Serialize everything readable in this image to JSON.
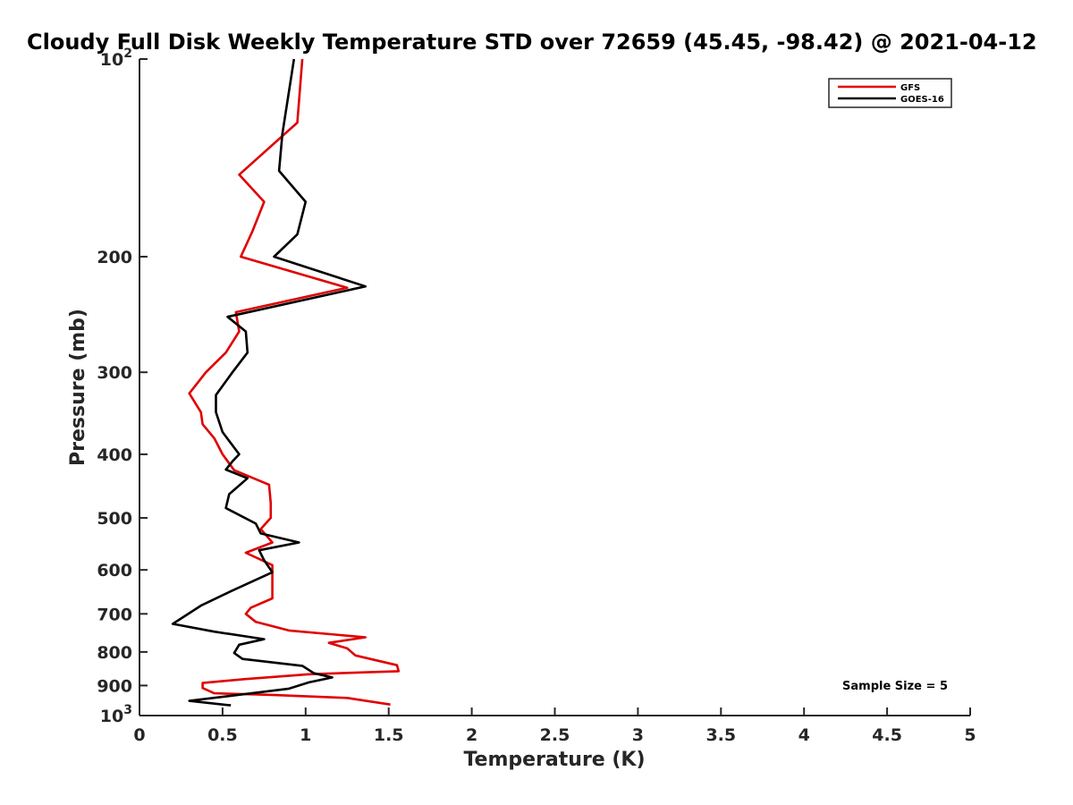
{
  "chart_data": {
    "type": "line",
    "title": "Cloudy Full Disk Weekly Temperature STD over 72659 (45.45, -98.42) @ 2021-04-12",
    "xlabel": "Temperature (K)",
    "ylabel": "Pressure (mb)",
    "xlim": [
      0,
      5
    ],
    "ylim": [
      100,
      1000
    ],
    "y_scale": "log",
    "y_reversed": true,
    "x_ticks": [
      "0",
      "0.5",
      "1",
      "1.5",
      "2",
      "2.5",
      "3",
      "3.5",
      "4",
      "4.5",
      "5"
    ],
    "y_ticks": [
      {
        "value": 100,
        "base": "10",
        "exp": "2"
      },
      {
        "value": 200,
        "label": "200"
      },
      {
        "value": 300,
        "label": "300"
      },
      {
        "value": 400,
        "label": "400"
      },
      {
        "value": 500,
        "label": "500"
      },
      {
        "value": 600,
        "label": "600"
      },
      {
        "value": 700,
        "label": "700"
      },
      {
        "value": 800,
        "label": "800"
      },
      {
        "value": 900,
        "label": "900"
      },
      {
        "value": 1000,
        "base": "10",
        "exp": "3"
      }
    ],
    "legend_position": "top-right",
    "annotation": "Sample Size = 5",
    "series": [
      {
        "name": "GFS",
        "color": "#e00000",
        "points": [
          [
            0.98,
            100
          ],
          [
            0.95,
            125
          ],
          [
            0.6,
            150
          ],
          [
            0.75,
            165
          ],
          [
            0.68,
            183
          ],
          [
            0.61,
            200
          ],
          [
            1.25,
            223
          ],
          [
            0.58,
            243
          ],
          [
            0.6,
            260
          ],
          [
            0.52,
            280
          ],
          [
            0.4,
            300
          ],
          [
            0.3,
            323
          ],
          [
            0.37,
            345
          ],
          [
            0.38,
            360
          ],
          [
            0.45,
            378
          ],
          [
            0.5,
            400
          ],
          [
            0.57,
            423
          ],
          [
            0.78,
            445
          ],
          [
            0.79,
            475
          ],
          [
            0.79,
            500
          ],
          [
            0.73,
            520
          ],
          [
            0.8,
            545
          ],
          [
            0.64,
            565
          ],
          [
            0.8,
            590
          ],
          [
            0.8,
            610
          ],
          [
            0.8,
            640
          ],
          [
            0.8,
            663
          ],
          [
            0.67,
            685
          ],
          [
            0.64,
            700
          ],
          [
            0.7,
            720
          ],
          [
            0.9,
            742
          ],
          [
            1.36,
            760
          ],
          [
            1.14,
            775
          ],
          [
            1.25,
            790
          ],
          [
            1.3,
            810
          ],
          [
            1.55,
            838
          ],
          [
            1.56,
            856
          ],
          [
            1.02,
            865
          ],
          [
            0.63,
            880
          ],
          [
            0.38,
            892
          ],
          [
            0.38,
            908
          ],
          [
            0.45,
            925
          ],
          [
            0.8,
            930
          ],
          [
            1.25,
            940
          ],
          [
            1.51,
            962
          ]
        ]
      },
      {
        "name": "GOES-16",
        "color": "#000000",
        "points": [
          [
            0.93,
            100
          ],
          [
            0.86,
            130
          ],
          [
            0.84,
            148
          ],
          [
            1.0,
            165
          ],
          [
            0.95,
            185
          ],
          [
            0.81,
            200
          ],
          [
            1.36,
            222
          ],
          [
            0.53,
            247
          ],
          [
            0.64,
            260
          ],
          [
            0.65,
            280
          ],
          [
            0.56,
            300
          ],
          [
            0.46,
            325
          ],
          [
            0.46,
            345
          ],
          [
            0.5,
            370
          ],
          [
            0.6,
            400
          ],
          [
            0.56,
            410
          ],
          [
            0.52,
            422
          ],
          [
            0.65,
            435
          ],
          [
            0.54,
            460
          ],
          [
            0.52,
            483
          ],
          [
            0.7,
            510
          ],
          [
            0.73,
            528
          ],
          [
            0.96,
            545
          ],
          [
            0.72,
            560
          ],
          [
            0.75,
            580
          ],
          [
            0.8,
            605
          ],
          [
            0.56,
            645
          ],
          [
            0.37,
            680
          ],
          [
            0.2,
            725
          ],
          [
            0.45,
            745
          ],
          [
            0.75,
            765
          ],
          [
            0.6,
            780
          ],
          [
            0.57,
            803
          ],
          [
            0.62,
            820
          ],
          [
            0.98,
            840
          ],
          [
            1.05,
            862
          ],
          [
            1.16,
            875
          ],
          [
            1.02,
            890
          ],
          [
            0.9,
            910
          ],
          [
            0.3,
            950
          ],
          [
            0.55,
            965
          ]
        ]
      }
    ]
  }
}
